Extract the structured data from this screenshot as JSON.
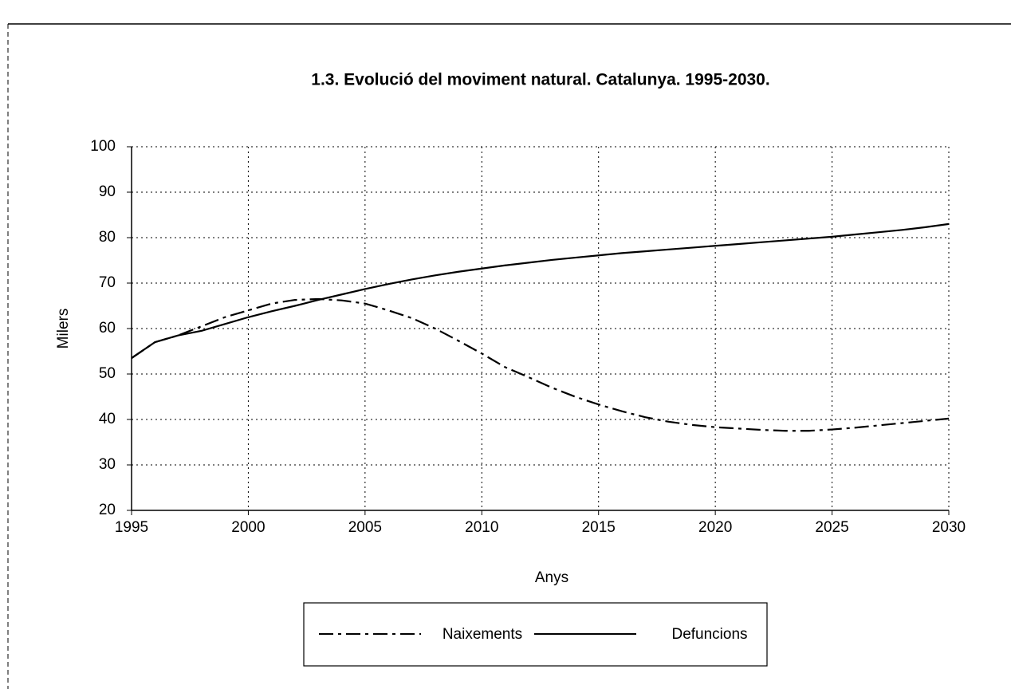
{
  "chart_data": {
    "type": "line",
    "title": "1.3. Evolució del moviment natural. Catalunya. 1995-2030.",
    "x_label": "Anys",
    "y_label": "Milers",
    "x": [
      1995,
      1996,
      1997,
      1998,
      1999,
      2000,
      2001,
      2002,
      2003,
      2004,
      2005,
      2006,
      2007,
      2008,
      2009,
      2010,
      2011,
      2012,
      2013,
      2014,
      2015,
      2016,
      2017,
      2018,
      2019,
      2020,
      2021,
      2022,
      2023,
      2024,
      2025,
      2026,
      2027,
      2028,
      2029,
      2030
    ],
    "series": [
      {
        "name": "Naixements",
        "color": "#000000",
        "dash": "dashdot",
        "values": [
          53.5,
          57,
          58.5,
          60.5,
          62.5,
          64,
          65.5,
          66.3,
          66.5,
          66.2,
          65.5,
          64,
          62.3,
          60,
          57.3,
          54.5,
          51.5,
          49.3,
          47,
          45,
          43.3,
          41.8,
          40.5,
          39.5,
          38.8,
          38.3,
          38,
          37.7,
          37.5,
          37.5,
          37.8,
          38.2,
          38.7,
          39.2,
          39.7,
          40.2
        ]
      },
      {
        "name": "Defuncions",
        "color": "#000000",
        "dash": "solid",
        "values": [
          53.5,
          57,
          58.5,
          59.5,
          61,
          62.5,
          63.8,
          65,
          66.3,
          67.5,
          68.7,
          69.8,
          70.8,
          71.7,
          72.5,
          73.2,
          73.9,
          74.5,
          75.1,
          75.6,
          76.1,
          76.6,
          77,
          77.4,
          77.8,
          78.2,
          78.6,
          79,
          79.4,
          79.8,
          80.2,
          80.7,
          81.2,
          81.7,
          82.3,
          83
        ]
      }
    ],
    "xlim": [
      1995,
      2030
    ],
    "xticks": [
      1995,
      2000,
      2005,
      2010,
      2015,
      2020,
      2025,
      2030
    ],
    "ylim": [
      20,
      100
    ],
    "yticks": [
      20,
      30,
      40,
      50,
      60,
      70,
      80,
      90,
      100
    ],
    "grid": true,
    "legend": "bottom"
  }
}
